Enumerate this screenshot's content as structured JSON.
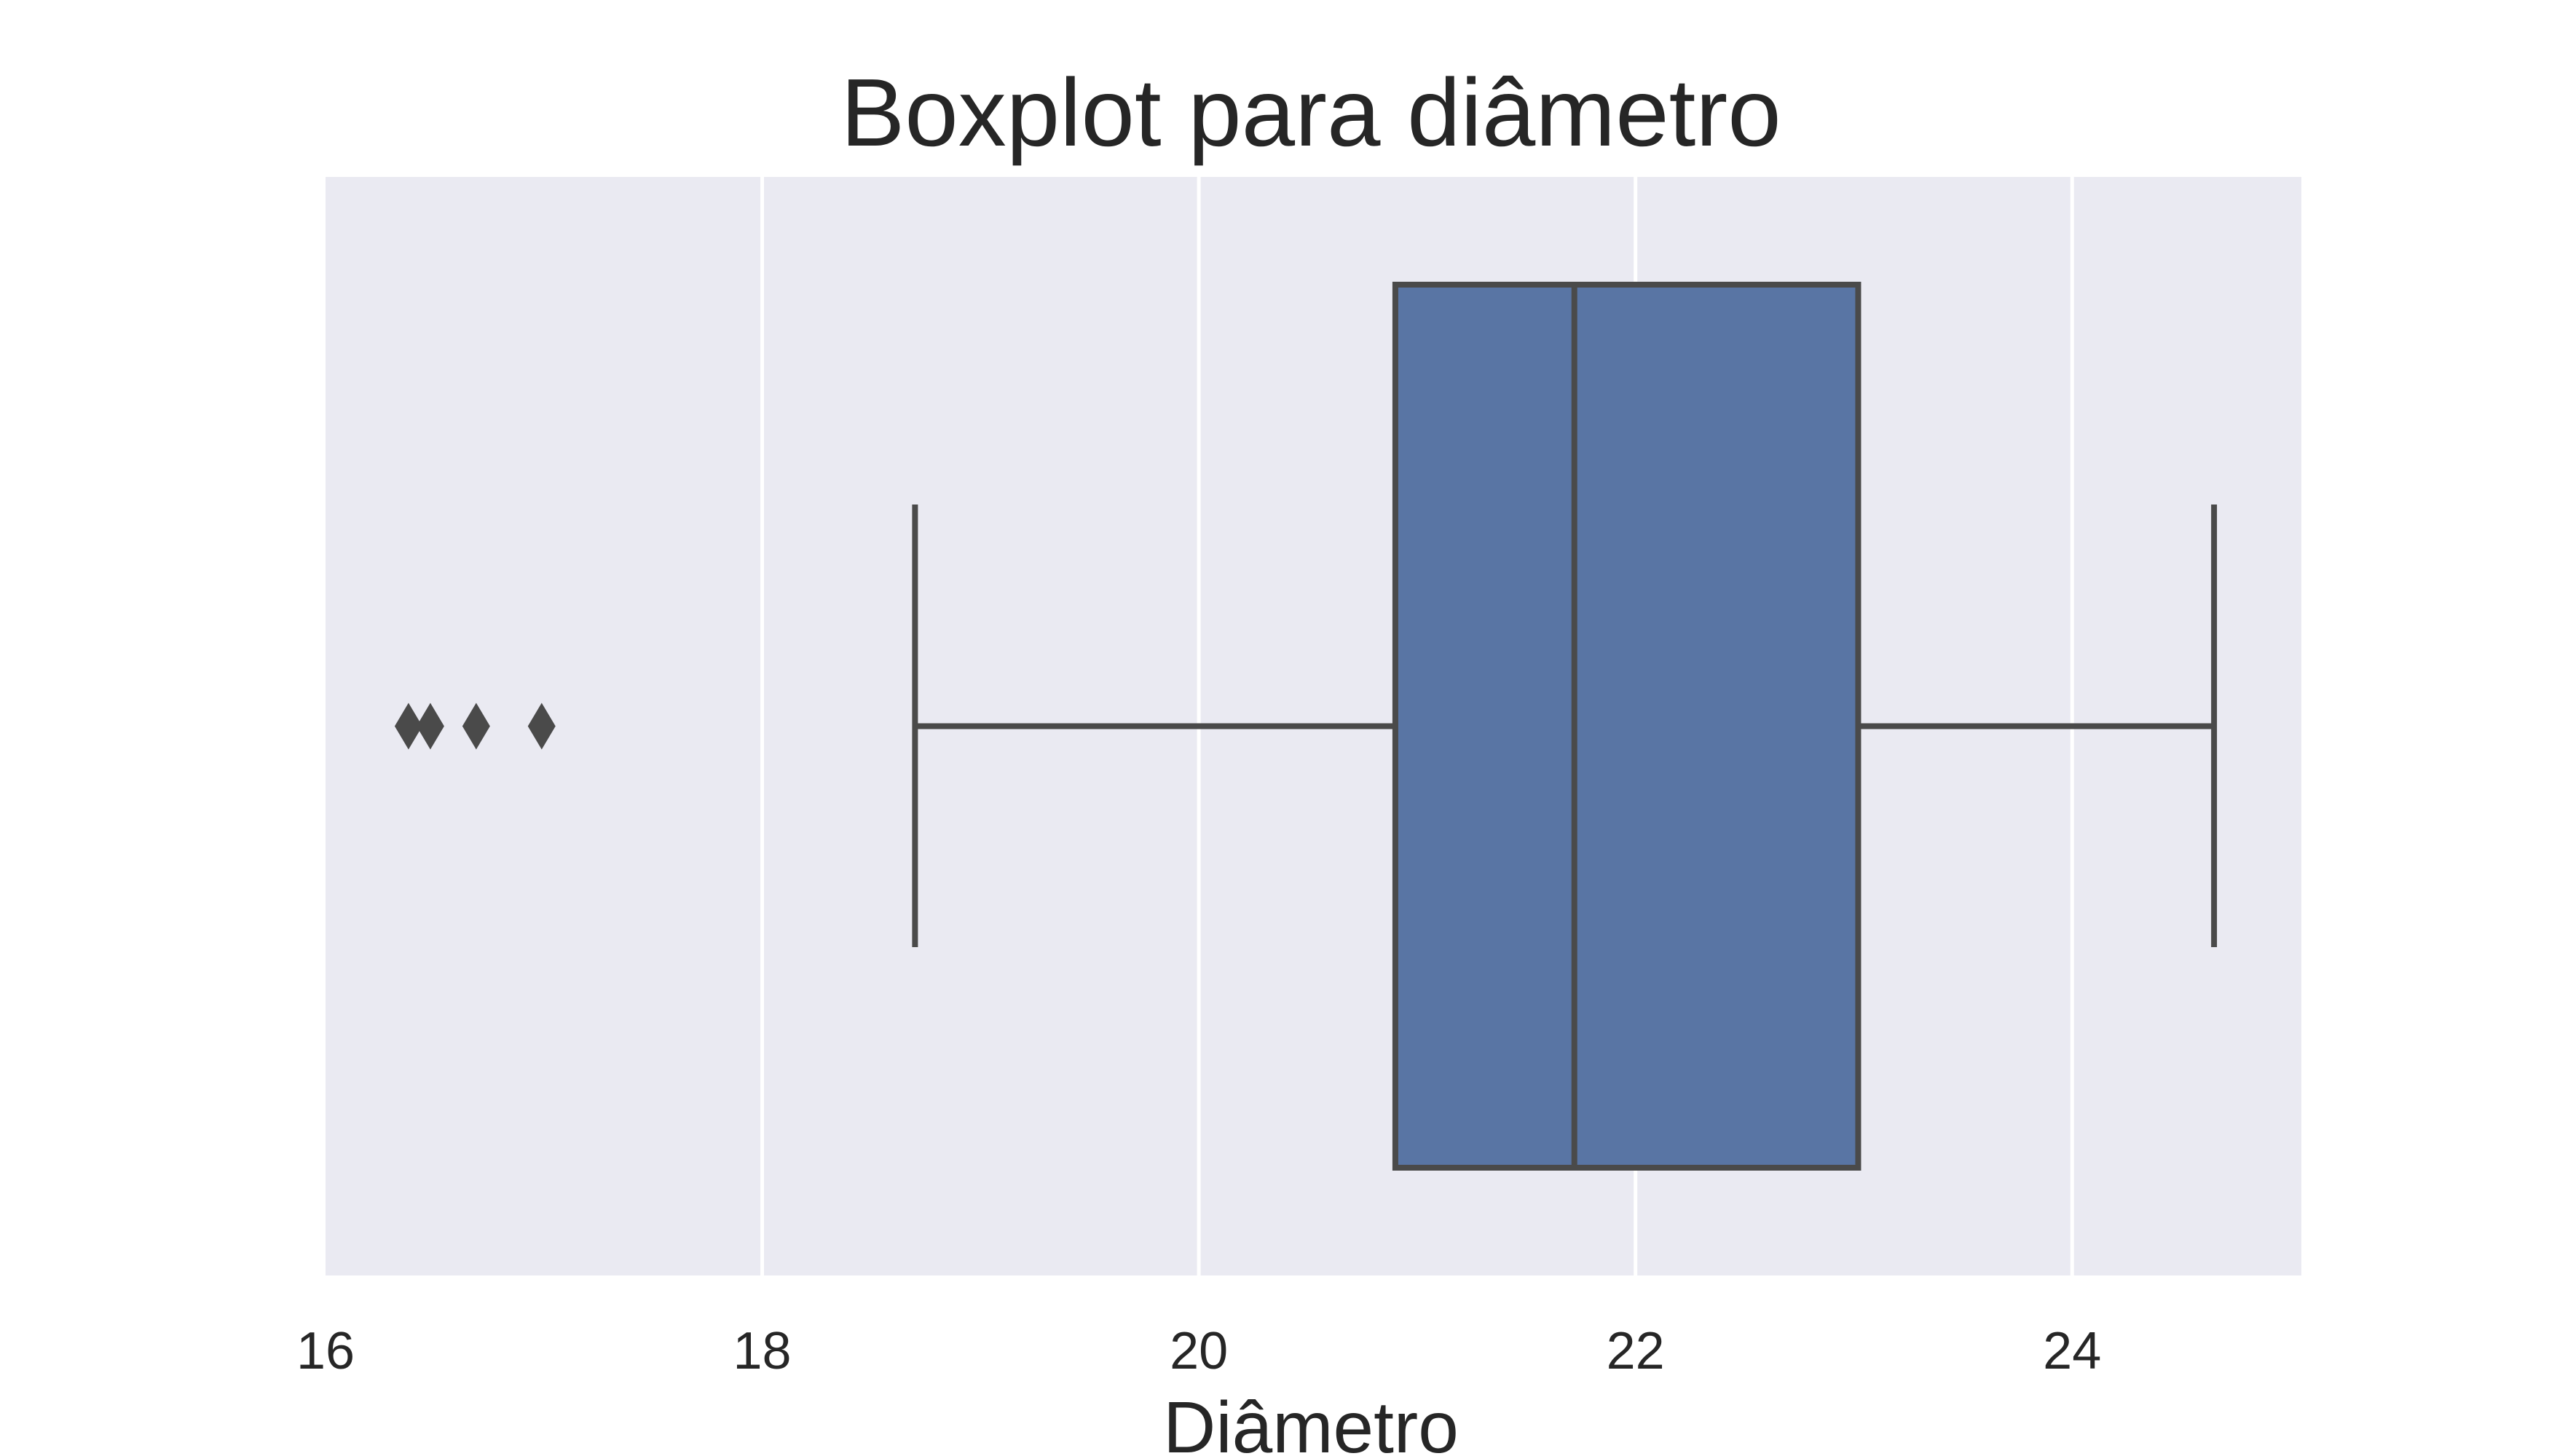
{
  "chart_data": {
    "type": "boxplot",
    "title": "Boxplot para diâmetro",
    "xlabel": "Diâmetro",
    "ylabel": "",
    "xlim": [
      16,
      25.05
    ],
    "xticks": [
      16,
      18,
      20,
      22,
      24
    ],
    "xtick_labels": [
      "16",
      "18",
      "20",
      "22",
      "24"
    ],
    "grid": true,
    "orientation": "horizontal",
    "box": {
      "whisker_low": 18.7,
      "q1": 20.9,
      "median": 21.72,
      "q3": 23.02,
      "whisker_high": 24.65
    },
    "outliers": [
      16.38,
      16.48,
      16.69,
      16.99
    ],
    "colors": {
      "plot_background": "#EAEAF2",
      "grid": "#FFFFFF",
      "box_fill": "#5975A4",
      "line": "#4A4A4A",
      "text": "#262626"
    }
  }
}
